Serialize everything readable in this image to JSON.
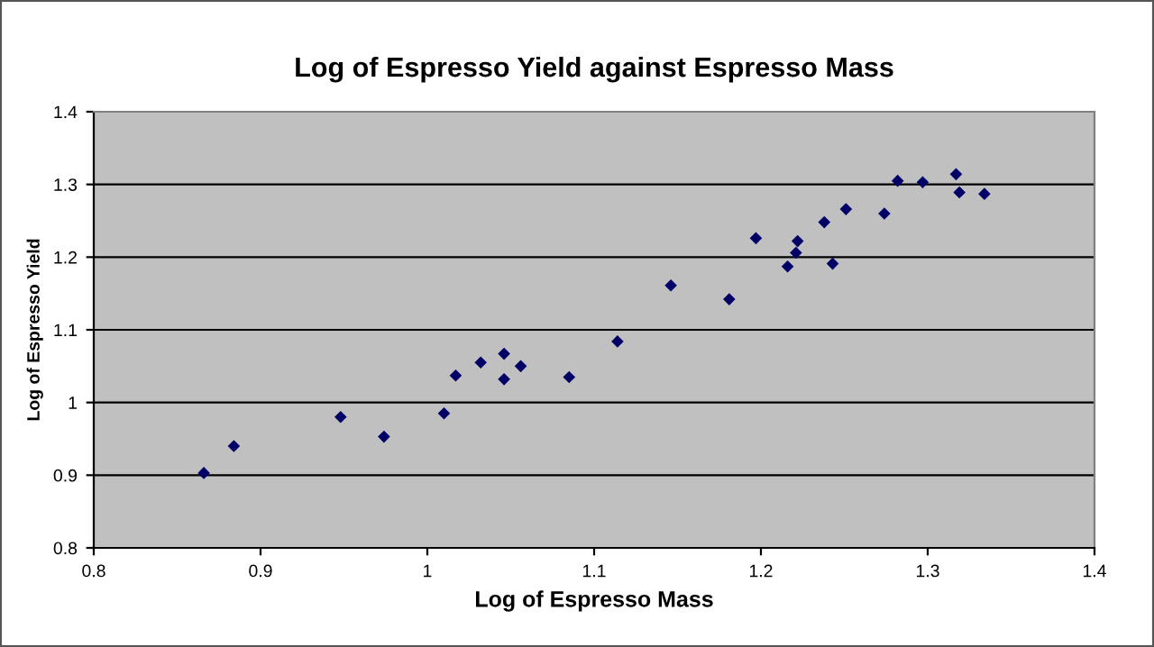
{
  "chart_data": {
    "type": "scatter",
    "title": "Log of Espresso Yield against Espresso Mass",
    "xlabel": "Log of Espresso Mass",
    "ylabel": "Log of Espresso Yield",
    "x": [
      0.866,
      0.884,
      0.948,
      0.974,
      1.01,
      1.017,
      1.032,
      1.046,
      1.056,
      1.046,
      1.085,
      1.114,
      1.146,
      1.181,
      1.197,
      1.222,
      1.221,
      1.216,
      1.238,
      1.243,
      1.251,
      1.274,
      1.282,
      1.297,
      1.317,
      1.319,
      1.334
    ],
    "series": [
      {
        "color": "#000066",
        "values": [
          0.903,
          0.94,
          0.98,
          0.953,
          0.985,
          1.037,
          1.055,
          1.067,
          1.05,
          1.032,
          1.035,
          1.084,
          1.161,
          1.142,
          1.226,
          1.222,
          1.206,
          1.187,
          1.248,
          1.191,
          1.266,
          1.26,
          1.305,
          1.303,
          1.314,
          1.289,
          1.287
        ]
      }
    ],
    "xlim": [
      0.8,
      1.4
    ],
    "ylim": [
      0.8,
      1.4
    ],
    "xticks": [
      0.8,
      0.9,
      1,
      1.1,
      1.2,
      1.3,
      1.4
    ],
    "yticks": [
      0.8,
      0.9,
      1,
      1.1,
      1.2,
      1.3,
      1.4
    ],
    "grid": "y",
    "marker": "diamond",
    "legend": false
  }
}
